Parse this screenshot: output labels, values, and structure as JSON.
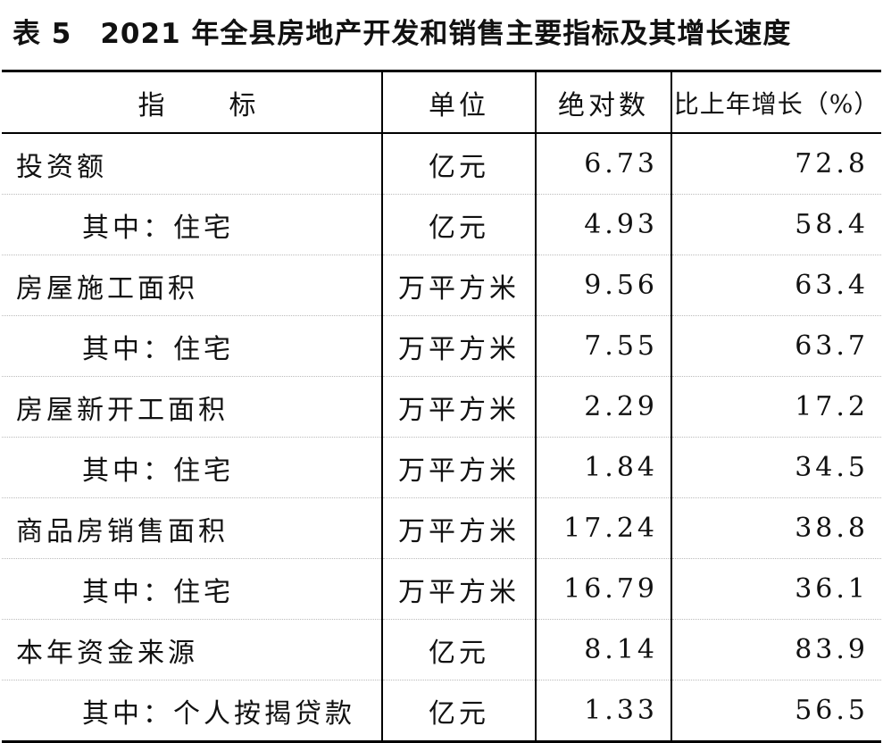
{
  "title": "表 5　2021 年全县房地产开发和销售主要指标及其增长速度",
  "table": {
    "header": [
      "指　　标",
      "单位",
      "绝对数",
      "比上年增长（%）"
    ],
    "rows": [
      [
        "投资额",
        "亿元",
        "6.73",
        "72.8"
      ],
      [
        "其中：住宅",
        "亿元",
        "4.93",
        "58.4"
      ],
      [
        "房屋施工面积",
        "万平方米",
        "9.56",
        "63.4"
      ],
      [
        "其中：住宅",
        "万平方米",
        "7.55",
        "63.7"
      ],
      [
        "房屋新开工面积",
        "万平方米",
        "2.29",
        "17.2"
      ],
      [
        "其中：住宅",
        "万平方米",
        "1.84",
        "34.5"
      ],
      [
        "商品房销售面积",
        "万平方米",
        "17.24",
        "38.8"
      ],
      [
        "其中：住宅",
        "万平方米",
        "16.79",
        "36.1"
      ],
      [
        "本年资金来源",
        "亿元",
        "8.14",
        "83.9"
      ],
      [
        "其中：个人按揭贷款",
        "亿元",
        "1.33",
        "56.5"
      ]
    ]
  }
}
